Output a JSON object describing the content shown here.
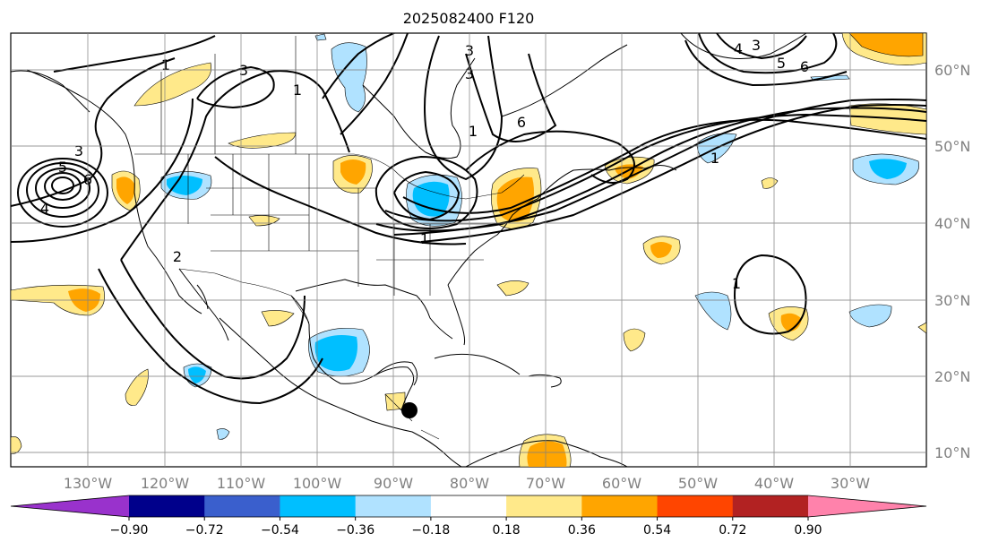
{
  "title": "2025082400 F120",
  "lat_labels": [
    "60°N",
    "50°N",
    "40°N",
    "30°N",
    "20°N",
    "10°N"
  ],
  "lon_labels": [
    "130°W",
    "120°W",
    "110°W",
    "100°W",
    "90°W",
    "80°W",
    "70°W",
    "60°W",
    "50°W",
    "40°W",
    "30°W"
  ],
  "colorbar": {
    "ticks": [
      "−0.90",
      "−0.72",
      "−0.54",
      "−0.36",
      "−0.18",
      "0.18",
      "0.36",
      "0.54",
      "0.72",
      "0.90"
    ],
    "bins": [
      "#9932cc",
      "#00008b",
      "#3a5fcd",
      "#00bfff",
      "#b0e2ff",
      "#ffffff",
      "#ffe98a",
      "#ffa500",
      "#ff4500",
      "#b22222",
      "#ff82ab"
    ]
  },
  "contour_labels": [
    "1",
    "3",
    "1",
    "3",
    "5",
    "6",
    "4",
    "3",
    "6",
    "3",
    "1",
    "2",
    "4",
    "5",
    "6",
    "3",
    "1",
    "1",
    "1"
  ],
  "marker": {
    "name": "storm-marker",
    "color": "#000000"
  },
  "colors": {
    "light_blue": "#b0e2ff",
    "blue": "#00bfff",
    "yellow": "#ffe98a",
    "orange": "#ffa500",
    "grid": "#808080",
    "label": "#808080"
  }
}
